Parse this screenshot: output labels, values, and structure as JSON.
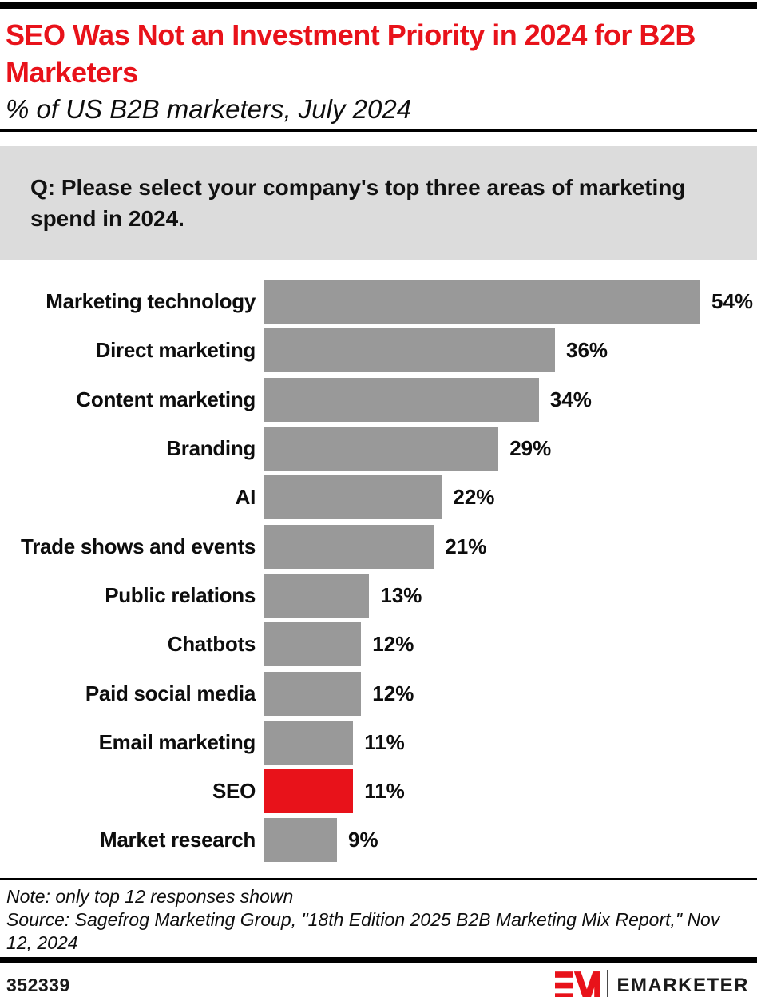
{
  "header": {
    "title": "SEO Was Not an Investment Priority in 2024 for B2B Marketers",
    "subtitle": "% of US B2B marketers, July 2024"
  },
  "question": {
    "text": "Q: Please select your company's top three areas of marketing spend in 2024."
  },
  "chart_data": {
    "type": "bar",
    "orientation": "horizontal",
    "title": "SEO Was Not an Investment Priority in 2024 for B2B Marketers",
    "subtitle": "% of US B2B marketers, July 2024",
    "categories": [
      "Marketing technology",
      "Direct marketing",
      "Content marketing",
      "Branding",
      "AI",
      "Trade shows and events",
      "Public relations",
      "Chatbots",
      "Paid social media",
      "Email marketing",
      "SEO",
      "Market research"
    ],
    "values": [
      54,
      36,
      34,
      29,
      22,
      21,
      13,
      12,
      12,
      11,
      11,
      9
    ],
    "value_labels": [
      "54%",
      "36%",
      "34%",
      "29%",
      "22%",
      "21%",
      "13%",
      "12%",
      "12%",
      "11%",
      "11%",
      "9%"
    ],
    "unit": "%",
    "xlim": [
      0,
      54
    ],
    "grid": false,
    "legend": false,
    "highlight_index": 10,
    "highlight_category": "SEO",
    "bar_color": "#999999",
    "highlight_color": "#e8121a"
  },
  "footer": {
    "note": "Note: only top 12 responses shown",
    "source": "Source: Sagefrog Marketing Group, \"18th Edition 2025 B2B Marketing Mix Report,\" Nov 12, 2024",
    "chart_id": "352339",
    "brand": "EMARKETER"
  },
  "colors": {
    "accent_red": "#e8121a",
    "bar_gray": "#999999",
    "question_box_bg": "#dcdcdc",
    "text_black": "#0d0d0d"
  }
}
